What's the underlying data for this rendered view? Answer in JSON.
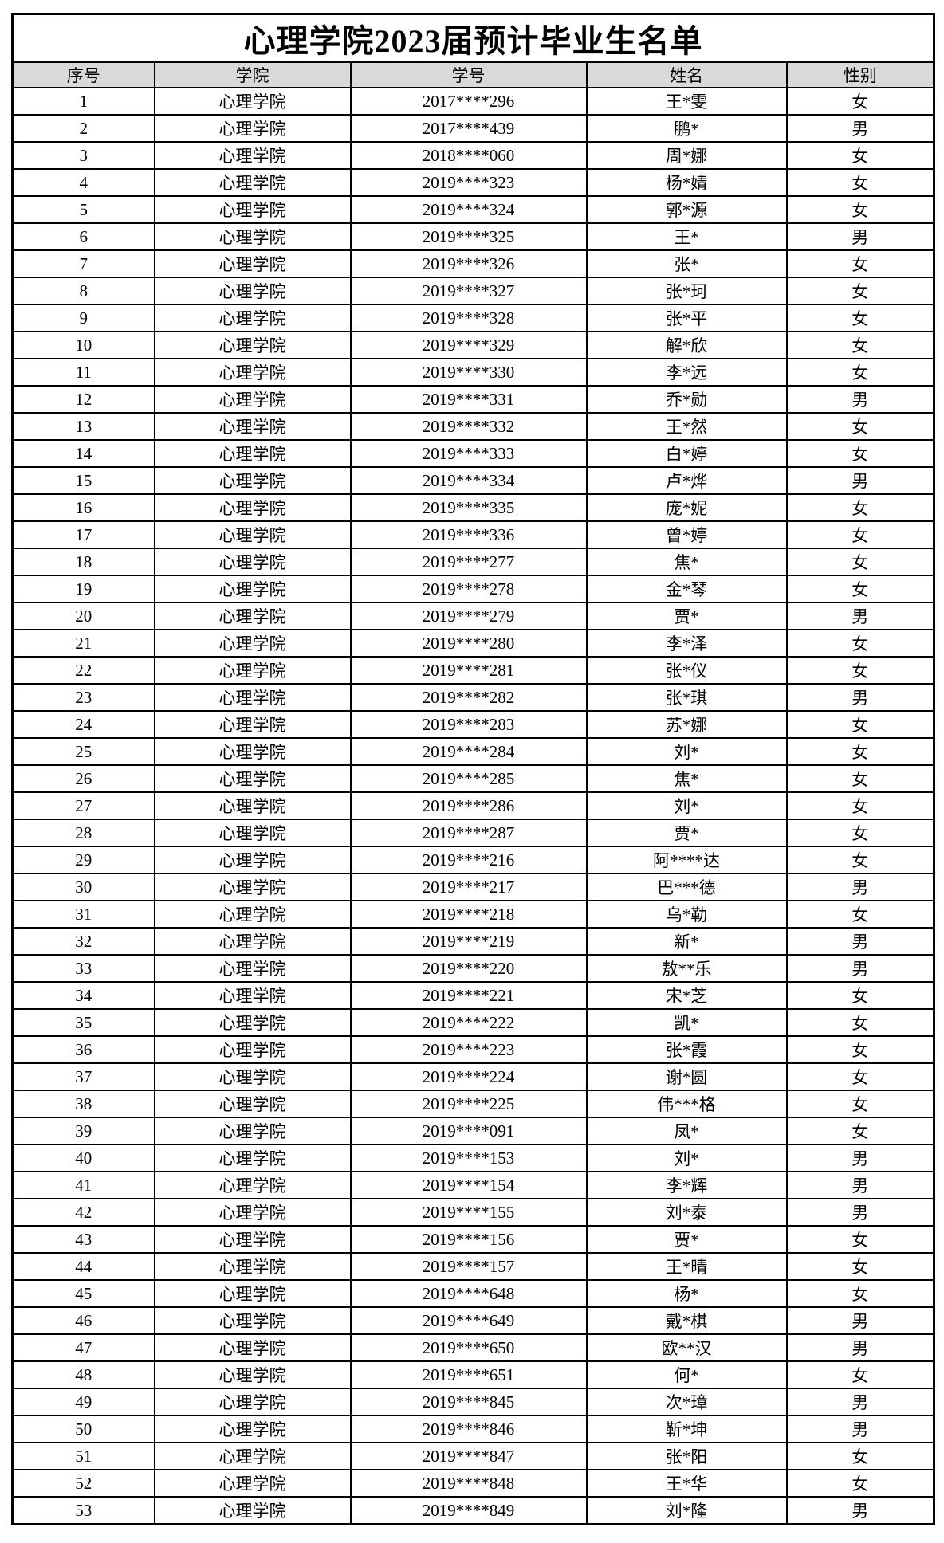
{
  "title": "心理学院2023届预计毕业生名单",
  "table": {
    "headers": [
      "序号",
      "学院",
      "学号",
      "姓名",
      "性别"
    ],
    "rows": [
      {
        "no": "1",
        "college": "心理学院",
        "student_id": "2017****296",
        "name": "王*雯",
        "gender": "女"
      },
      {
        "no": "2",
        "college": "心理学院",
        "student_id": "2017****439",
        "name": "鹏*",
        "gender": "男"
      },
      {
        "no": "3",
        "college": "心理学院",
        "student_id": "2018****060",
        "name": "周*娜",
        "gender": "女"
      },
      {
        "no": "4",
        "college": "心理学院",
        "student_id": "2019****323",
        "name": "杨*婧",
        "gender": "女"
      },
      {
        "no": "5",
        "college": "心理学院",
        "student_id": "2019****324",
        "name": "郭*源",
        "gender": "女"
      },
      {
        "no": "6",
        "college": "心理学院",
        "student_id": "2019****325",
        "name": "王*",
        "gender": "男"
      },
      {
        "no": "7",
        "college": "心理学院",
        "student_id": "2019****326",
        "name": "张*",
        "gender": "女"
      },
      {
        "no": "8",
        "college": "心理学院",
        "student_id": "2019****327",
        "name": "张*珂",
        "gender": "女"
      },
      {
        "no": "9",
        "college": "心理学院",
        "student_id": "2019****328",
        "name": "张*平",
        "gender": "女"
      },
      {
        "no": "10",
        "college": "心理学院",
        "student_id": "2019****329",
        "name": "解*欣",
        "gender": "女"
      },
      {
        "no": "11",
        "college": "心理学院",
        "student_id": "2019****330",
        "name": "李*远",
        "gender": "女"
      },
      {
        "no": "12",
        "college": "心理学院",
        "student_id": "2019****331",
        "name": "乔*勋",
        "gender": "男"
      },
      {
        "no": "13",
        "college": "心理学院",
        "student_id": "2019****332",
        "name": "王*然",
        "gender": "女"
      },
      {
        "no": "14",
        "college": "心理学院",
        "student_id": "2019****333",
        "name": "白*婷",
        "gender": "女"
      },
      {
        "no": "15",
        "college": "心理学院",
        "student_id": "2019****334",
        "name": "卢*烨",
        "gender": "男"
      },
      {
        "no": "16",
        "college": "心理学院",
        "student_id": "2019****335",
        "name": "庞*妮",
        "gender": "女"
      },
      {
        "no": "17",
        "college": "心理学院",
        "student_id": "2019****336",
        "name": "曾*婷",
        "gender": "女"
      },
      {
        "no": "18",
        "college": "心理学院",
        "student_id": "2019****277",
        "name": "焦*",
        "gender": "女"
      },
      {
        "no": "19",
        "college": "心理学院",
        "student_id": "2019****278",
        "name": "金*琴",
        "gender": "女"
      },
      {
        "no": "20",
        "college": "心理学院",
        "student_id": "2019****279",
        "name": "贾*",
        "gender": "男"
      },
      {
        "no": "21",
        "college": "心理学院",
        "student_id": "2019****280",
        "name": "李*泽",
        "gender": "女"
      },
      {
        "no": "22",
        "college": "心理学院",
        "student_id": "2019****281",
        "name": "张*仪",
        "gender": "女"
      },
      {
        "no": "23",
        "college": "心理学院",
        "student_id": "2019****282",
        "name": "张*琪",
        "gender": "男"
      },
      {
        "no": "24",
        "college": "心理学院",
        "student_id": "2019****283",
        "name": "苏*娜",
        "gender": "女"
      },
      {
        "no": "25",
        "college": "心理学院",
        "student_id": "2019****284",
        "name": "刘*",
        "gender": "女"
      },
      {
        "no": "26",
        "college": "心理学院",
        "student_id": "2019****285",
        "name": "焦*",
        "gender": "女"
      },
      {
        "no": "27",
        "college": "心理学院",
        "student_id": "2019****286",
        "name": "刘*",
        "gender": "女"
      },
      {
        "no": "28",
        "college": "心理学院",
        "student_id": "2019****287",
        "name": "贾*",
        "gender": "女"
      },
      {
        "no": "29",
        "college": "心理学院",
        "student_id": "2019****216",
        "name": "阿****达",
        "gender": "女"
      },
      {
        "no": "30",
        "college": "心理学院",
        "student_id": "2019****217",
        "name": "巴***德",
        "gender": "男"
      },
      {
        "no": "31",
        "college": "心理学院",
        "student_id": "2019****218",
        "name": "乌*勒",
        "gender": "女"
      },
      {
        "no": "32",
        "college": "心理学院",
        "student_id": "2019****219",
        "name": "新*",
        "gender": "男"
      },
      {
        "no": "33",
        "college": "心理学院",
        "student_id": "2019****220",
        "name": "敖**乐",
        "gender": "男"
      },
      {
        "no": "34",
        "college": "心理学院",
        "student_id": "2019****221",
        "name": "宋*芝",
        "gender": "女"
      },
      {
        "no": "35",
        "college": "心理学院",
        "student_id": "2019****222",
        "name": "凯*",
        "gender": "女"
      },
      {
        "no": "36",
        "college": "心理学院",
        "student_id": "2019****223",
        "name": "张*霞",
        "gender": "女"
      },
      {
        "no": "37",
        "college": "心理学院",
        "student_id": "2019****224",
        "name": "谢*圆",
        "gender": "女"
      },
      {
        "no": "38",
        "college": "心理学院",
        "student_id": "2019****225",
        "name": "伟***格",
        "gender": "女"
      },
      {
        "no": "39",
        "college": "心理学院",
        "student_id": "2019****091",
        "name": "凤*",
        "gender": "女"
      },
      {
        "no": "40",
        "college": "心理学院",
        "student_id": "2019****153",
        "name": "刘*",
        "gender": "男"
      },
      {
        "no": "41",
        "college": "心理学院",
        "student_id": "2019****154",
        "name": "李*辉",
        "gender": "男"
      },
      {
        "no": "42",
        "college": "心理学院",
        "student_id": "2019****155",
        "name": "刘*泰",
        "gender": "男"
      },
      {
        "no": "43",
        "college": "心理学院",
        "student_id": "2019****156",
        "name": "贾*",
        "gender": "女"
      },
      {
        "no": "44",
        "college": "心理学院",
        "student_id": "2019****157",
        "name": "王*晴",
        "gender": "女"
      },
      {
        "no": "45",
        "college": "心理学院",
        "student_id": "2019****648",
        "name": "杨*",
        "gender": "女"
      },
      {
        "no": "46",
        "college": "心理学院",
        "student_id": "2019****649",
        "name": "戴*棋",
        "gender": "男"
      },
      {
        "no": "47",
        "college": "心理学院",
        "student_id": "2019****650",
        "name": "欧**汉",
        "gender": "男"
      },
      {
        "no": "48",
        "college": "心理学院",
        "student_id": "2019****651",
        "name": "何*",
        "gender": "女"
      },
      {
        "no": "49",
        "college": "心理学院",
        "student_id": "2019****845",
        "name": "次*璋",
        "gender": "男"
      },
      {
        "no": "50",
        "college": "心理学院",
        "student_id": "2019****846",
        "name": "靳*坤",
        "gender": "男"
      },
      {
        "no": "51",
        "college": "心理学院",
        "student_id": "2019****847",
        "name": "张*阳",
        "gender": "女"
      },
      {
        "no": "52",
        "college": "心理学院",
        "student_id": "2019****848",
        "name": "王*华",
        "gender": "女"
      },
      {
        "no": "53",
        "college": "心理学院",
        "student_id": "2019****849",
        "name": "刘*隆",
        "gender": "男"
      }
    ]
  },
  "colors": {
    "header_background": "#d9d9d9",
    "border": "#000000",
    "text": "#000000",
    "page_background": "#ffffff"
  }
}
